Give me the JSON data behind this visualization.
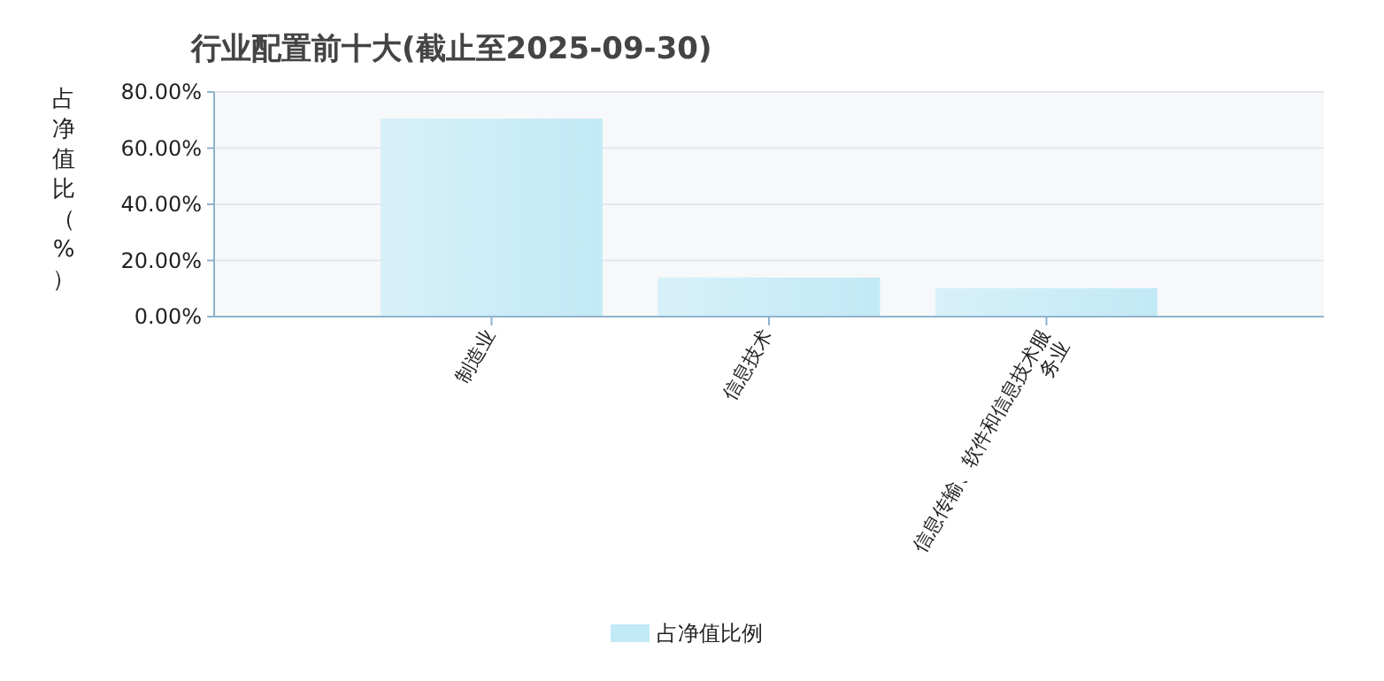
{
  "chart_data": {
    "type": "bar",
    "title": "行业配置前十大(截止至2025-09-30)",
    "ylabel": "占净值比（%）",
    "categories": [
      "制造业",
      "信息技术",
      "信息传输、软件和信息技术服务业"
    ],
    "series": [
      {
        "name": "占净值比例",
        "color": "#c2e9f6",
        "values": [
          70.5,
          13.9,
          10.1
        ]
      }
    ],
    "ylim": [
      0,
      80
    ],
    "yticks": [
      {
        "value": 0,
        "label": "0.00%"
      },
      {
        "value": 20,
        "label": "20.00%"
      },
      {
        "value": 40,
        "label": "40.00%"
      },
      {
        "value": 60,
        "label": "60.00%"
      },
      {
        "value": 80,
        "label": "80.00%"
      }
    ],
    "grid": "y",
    "legend": "bottom"
  }
}
